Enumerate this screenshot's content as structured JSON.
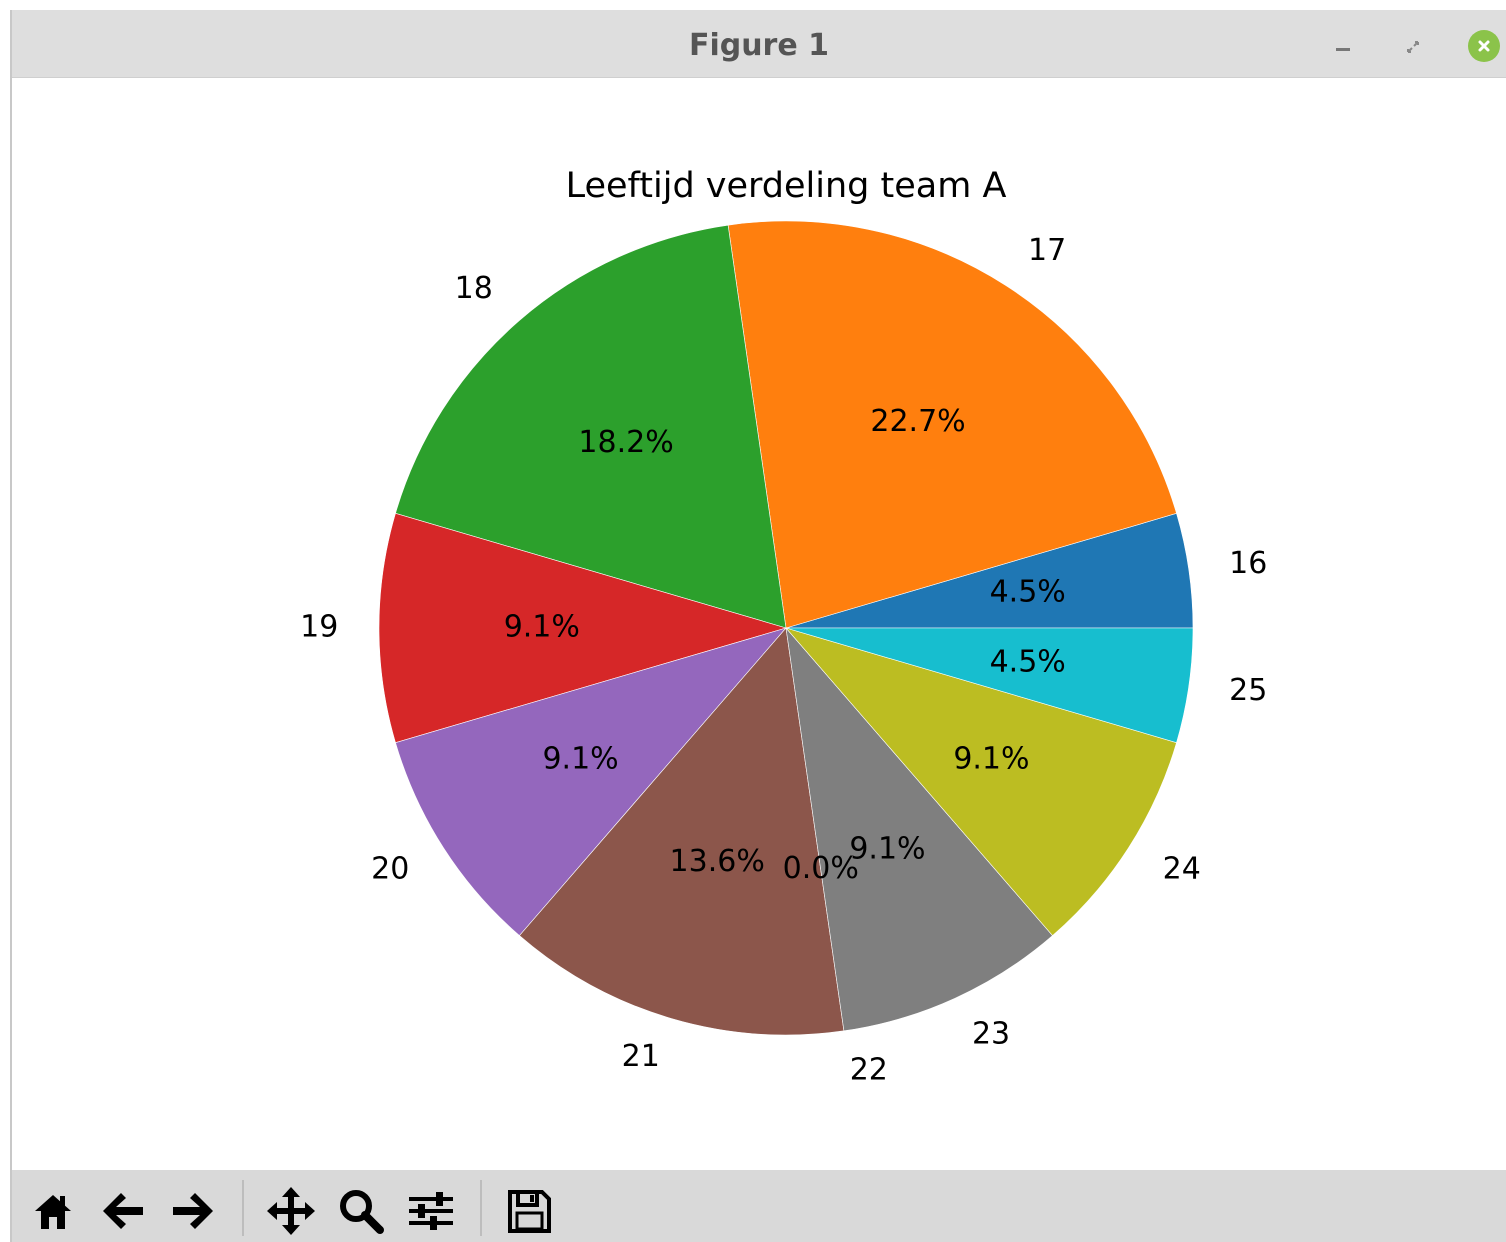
{
  "window": {
    "title": "Figure 1"
  },
  "toolbar": {
    "buttons": [
      {
        "name": "home-icon"
      },
      {
        "name": "back-arrow-icon"
      },
      {
        "name": "forward-arrow-icon"
      },
      {
        "name": "pan-icon"
      },
      {
        "name": "zoom-icon"
      },
      {
        "name": "configure-subplots-icon"
      },
      {
        "name": "save-icon"
      }
    ]
  },
  "chart_data": {
    "type": "pie",
    "title": "Leeftijd verdeling team A",
    "labels": [
      "16",
      "17",
      "18",
      "19",
      "20",
      "21",
      "22",
      "23",
      "24",
      "25"
    ],
    "values": [
      1,
      5,
      4,
      2,
      2,
      3,
      0,
      2,
      2,
      1
    ],
    "percent_labels": [
      "4.5%",
      "22.7%",
      "18.2%",
      "9.1%",
      "9.1%",
      "13.6%",
      "0.0%",
      "9.1%",
      "9.1%",
      "4.5%"
    ],
    "colors": [
      "#1f77b4",
      "#ff7f0e",
      "#2ca02c",
      "#d62728",
      "#9467bd",
      "#8c564b",
      "#e377c2",
      "#7f7f7f",
      "#bcbd22",
      "#17becf"
    ],
    "start_angle": 0,
    "direction": "counterclockwise"
  }
}
